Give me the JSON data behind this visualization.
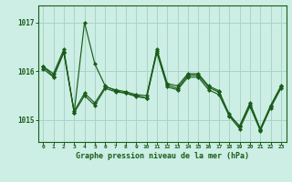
{
  "xlabel": "Graphe pression niveau de la mer (hPa)",
  "background_color": "#cceee4",
  "line_color": "#1a5c1a",
  "grid_color": "#aad4c8",
  "x_ticks": [
    0,
    1,
    2,
    3,
    4,
    5,
    6,
    7,
    8,
    9,
    10,
    11,
    12,
    13,
    14,
    15,
    16,
    17,
    18,
    19,
    20,
    21,
    22,
    23
  ],
  "y_ticks": [
    1015,
    1016,
    1017
  ],
  "ylim": [
    1014.55,
    1017.35
  ],
  "xlim": [
    -0.5,
    23.5
  ],
  "series": [
    [
      1016.1,
      1015.95,
      1016.45,
      1015.15,
      1017.0,
      1016.15,
      1015.7,
      1015.6,
      1015.55,
      1015.5,
      1015.45,
      1016.45,
      1015.75,
      1015.7,
      1015.95,
      1015.95,
      1015.7,
      1015.6,
      1015.1,
      1014.88,
      1015.35,
      1014.82,
      1015.3,
      1015.7
    ],
    [
      1016.1,
      1015.9,
      1016.4,
      1015.18,
      1015.55,
      1015.35,
      1015.68,
      1015.62,
      1015.58,
      1015.52,
      1015.5,
      1016.42,
      1015.72,
      1015.65,
      1015.92,
      1015.92,
      1015.67,
      1015.57,
      1015.12,
      1014.86,
      1015.32,
      1014.8,
      1015.28,
      1015.68
    ],
    [
      1016.05,
      1015.88,
      1016.38,
      1015.15,
      1015.5,
      1015.3,
      1015.65,
      1015.58,
      1015.55,
      1015.48,
      1015.45,
      1016.38,
      1015.68,
      1015.62,
      1015.88,
      1015.88,
      1015.62,
      1015.52,
      1015.08,
      1014.82,
      1015.28,
      1014.78,
      1015.25,
      1015.65
    ]
  ]
}
